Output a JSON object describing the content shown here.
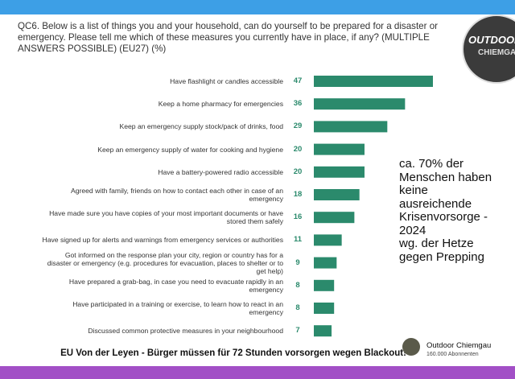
{
  "chart_data": {
    "type": "bar",
    "orientation": "horizontal",
    "title": "QC6. Below is a list of things you and your household, can do yourself to be prepared for a disaster or emergency. Please tell me which of these measures you currently have in place, if any? (MULTIPLE ANSWERS POSSIBLE) (EU27) (%)",
    "categories": [
      "Have flashlight or candles accessible",
      "Keep a home pharmacy for emergencies",
      "Keep an emergency supply stock/pack of drinks, food",
      "Keep an emergency supply of water for cooking and hygiene",
      "Have a battery-powered radio accessible",
      "Agreed with family, friends on how to contact each other in case of an emergency",
      "Have made sure you have copies of your most important documents or have stored them safely",
      "Have signed up for alerts and warnings from emergency services or authorities",
      "Got informed on the response plan your city, region or country has for a disaster or emergency (e.g. procedures for evacuation, places to shelter or to get help)",
      "Have prepared a grab-bag, in case you need to evacuate rapidly in an emergency",
      "Have participated in a training or exercise, to learn how to react in an emergency",
      "Discussed common protective measures in your neighbourhood"
    ],
    "values": [
      47,
      36,
      29,
      20,
      20,
      18,
      16,
      11,
      9,
      8,
      8,
      7
    ],
    "color": "#2b8a6c",
    "annotation": [
      "ca. 70% der",
      "Menschen haben",
      "keine",
      "ausreichende",
      "Krisenvorsorge -",
      "2024",
      "wg. der Hetze",
      "gegen Prepping"
    ]
  },
  "logo": {
    "line1": "OUTDOOR",
    "line2": "CHIEMGAU"
  },
  "caption": "EU Von der Leyen - Bürger müssen für 72 Stunden vorsorgen wegen Blackout!",
  "channel": {
    "name": "Outdoor Chiemgau",
    "subscribers": "160.000 Abonnenten"
  }
}
